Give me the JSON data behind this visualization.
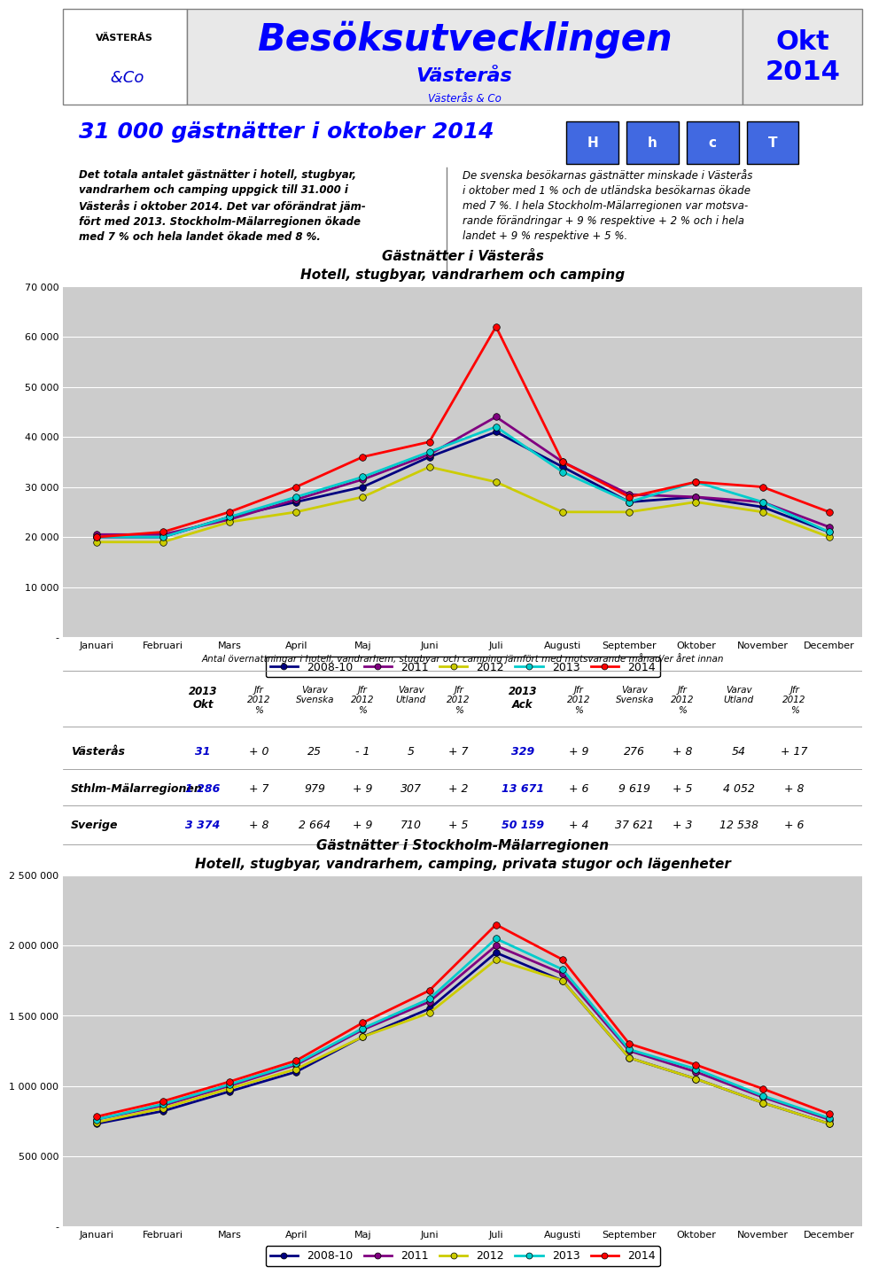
{
  "header_title": "Besöksutvecklingen",
  "header_subtitle": "Västerås",
  "header_sub2": "Västerås & Co",
  "header_period": "Okt\n2014",
  "main_title": "31 000 gästnätter i oktober 2014",
  "left_text": "Det totala antalet gästnätter i hotell, stugbyar,\nvandrarhem och camping uppgick till 31.000 i\nVästerås i oktober 2014. Det var oförändrat jäm-\nfört med 2013. Stockholm-Mälarregionen ökade\nmed 7 % och hela landet ökade med 8 %.",
  "right_text": "De svenska besökarnas gästnätter minskade i Västerås\ni oktober med 1 % och de utländska besökarnas ökade\nmed 7 %. I hela Stockholm-Mälarregionen var motsva-\nrande förändringar + 9 % respektive + 2 % och i hela\nlandet + 9 % respektive + 5 %.",
  "chart1_title": "Gästnätter i Västerås",
  "chart1_subtitle": "Hotell, stugbyar, vandrarhem och camping",
  "chart2_title": "Gästnätter i Stockholm-Mälarregionen",
  "chart2_subtitle": "Hotell, stugbyar, vandrarhem, camping, privata stugor och lägenheter",
  "months": [
    "Januari",
    "Februari",
    "Mars",
    "April",
    "Maj",
    "Juni",
    "Juli",
    "Augusti",
    "September",
    "Oktober",
    "November",
    "December"
  ],
  "legend_labels": [
    "2008-10",
    "2011",
    "2012",
    "2013",
    "2014"
  ],
  "line_colors": [
    "#000080",
    "#800080",
    "#CCCC00",
    "#00CCCC",
    "#FF0000"
  ],
  "vasteras_data": {
    "2008_10": [
      20000,
      20000,
      24000,
      27000,
      30000,
      36000,
      41000,
      34000,
      27000,
      28000,
      26000,
      21000
    ],
    "2011": [
      20500,
      20500,
      23500,
      27500,
      31500,
      36500,
      44000,
      35000,
      28500,
      28000,
      27000,
      22000
    ],
    "2012": [
      19000,
      19000,
      23000,
      25000,
      28000,
      34000,
      31000,
      25000,
      25000,
      27000,
      25000,
      20000
    ],
    "2013": [
      20000,
      20000,
      24000,
      28000,
      32000,
      37000,
      42000,
      33000,
      27000,
      31000,
      27000,
      21000
    ],
    "2014": [
      20000,
      21000,
      25000,
      30000,
      36000,
      39000,
      62000,
      35000,
      28000,
      31000,
      30000,
      25000
    ]
  },
  "stockholm_data": {
    "2008_10": [
      730000,
      820000,
      960000,
      1100000,
      1350000,
      1550000,
      1950000,
      1750000,
      1200000,
      1050000,
      880000,
      730000
    ],
    "2011": [
      760000,
      860000,
      1000000,
      1150000,
      1400000,
      1600000,
      2000000,
      1800000,
      1250000,
      1100000,
      920000,
      760000
    ],
    "2012": [
      740000,
      840000,
      980000,
      1120000,
      1350000,
      1520000,
      1900000,
      1750000,
      1200000,
      1050000,
      880000,
      730000
    ],
    "2013": [
      760000,
      870000,
      1010000,
      1160000,
      1410000,
      1620000,
      2050000,
      1830000,
      1260000,
      1120000,
      930000,
      770000
    ],
    "2014": [
      780000,
      890000,
      1030000,
      1180000,
      1450000,
      1680000,
      2150000,
      1900000,
      1300000,
      1150000,
      980000,
      800000
    ]
  },
  "table_rows": [
    "Västerås",
    "Sthlm-Mälarregionen",
    "Sverige"
  ],
  "table_values": [
    [
      "31",
      "+ 0",
      "25",
      "- 1",
      "5",
      "+ 7",
      "329",
      "+ 9",
      "276",
      "+ 8",
      "54",
      "+ 17"
    ],
    [
      "1 286",
      "+ 7",
      "979",
      "+ 9",
      "307",
      "+ 2",
      "13 671",
      "+ 6",
      "9 619",
      "+ 5",
      "4 052",
      "+ 8"
    ],
    [
      "3 374",
      "+ 8",
      "2 664",
      "+ 9",
      "710",
      "+ 5",
      "50 159",
      "+ 4",
      "37 621",
      "+ 3",
      "12 538",
      "+ 6"
    ]
  ],
  "table_note": "Antal övernattningar i hotell, vandrarhem, stugbyar och camping jämfört med motsvarande månad/er året innan",
  "chart1_ylim": [
    0,
    70000
  ],
  "chart1_yticks": [
    0,
    10000,
    20000,
    30000,
    40000,
    50000,
    60000,
    70000
  ],
  "chart1_ytick_labels": [
    "-",
    "10 000",
    "20 000",
    "30 000",
    "40 000",
    "50 000",
    "60 000",
    "70 000"
  ],
  "chart2_ylim": [
    0,
    2500000
  ],
  "chart2_yticks": [
    0,
    500000,
    1000000,
    1500000,
    2000000,
    2500000
  ],
  "chart2_ytick_labels": [
    "-",
    "500 000",
    "1 000 000",
    "1 500 000",
    "2 000 000",
    "2 500 000"
  ],
  "plot_bg_color": "#CCCCCC",
  "header_bg": "#E8E8E8",
  "blue_color": "#0000FF",
  "icon_color": "#4169E1"
}
